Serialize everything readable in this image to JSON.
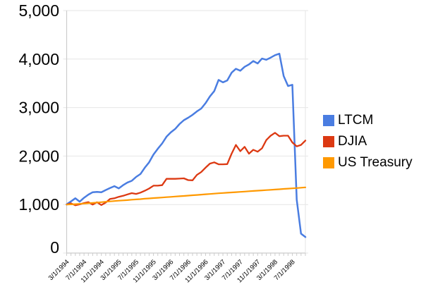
{
  "colors": {
    "background": "#ffffff",
    "grid": "#e6e6e6",
    "axis": "#cccccc",
    "text": "#000000"
  },
  "chart_data": {
    "type": "line",
    "title": "",
    "xlabel": "",
    "ylabel": "",
    "ylim": [
      0,
      5000
    ],
    "y_ticks": [
      0,
      1000,
      2000,
      3000,
      4000,
      5000
    ],
    "grid": "horizontal",
    "legend_position": "right",
    "x_labels_shown": [
      "3/1/1994",
      "7/1/1994",
      "11/1/1994",
      "3/1/1995",
      "7/1/1995",
      "11/1/1995",
      "3/1/1996",
      "7/1/1996",
      "11/1/1996",
      "3/1/1997",
      "7/1/1997",
      "11/1/1997",
      "3/1/1998",
      "7/1/1998"
    ],
    "dates": [
      "3/1/1994",
      "4/1/1994",
      "5/1/1994",
      "6/1/1994",
      "7/1/1994",
      "8/1/1994",
      "9/1/1994",
      "10/1/1994",
      "11/1/1994",
      "12/1/1994",
      "1/1/1995",
      "2/1/1995",
      "3/1/1995",
      "4/1/1995",
      "5/1/1995",
      "6/1/1995",
      "7/1/1995",
      "8/1/1995",
      "9/1/1995",
      "10/1/1995",
      "11/1/1995",
      "12/1/1995",
      "1/1/1996",
      "2/1/1996",
      "3/1/1996",
      "4/1/1996",
      "5/1/1996",
      "6/1/1996",
      "7/1/1996",
      "8/1/1996",
      "9/1/1996",
      "10/1/1996",
      "11/1/1996",
      "12/1/1996",
      "1/1/1997",
      "2/1/1997",
      "3/1/1997",
      "4/1/1997",
      "5/1/1997",
      "6/1/1997",
      "7/1/1997",
      "8/1/1997",
      "9/1/1997",
      "10/1/1997",
      "11/1/1997",
      "12/1/1997",
      "1/1/1998",
      "2/1/1998",
      "3/1/1998",
      "4/1/1998",
      "5/1/1998",
      "6/1/1998",
      "7/1/1998",
      "8/1/1998",
      "9/1/1998",
      "10/1/1998"
    ],
    "series": [
      {
        "name": "LTCM",
        "color": "#4a7de1",
        "values": [
          1005,
          1065,
          1130,
          1060,
          1140,
          1205,
          1255,
          1260,
          1255,
          1300,
          1340,
          1380,
          1335,
          1400,
          1455,
          1490,
          1570,
          1630,
          1760,
          1870,
          2030,
          2150,
          2260,
          2400,
          2490,
          2560,
          2660,
          2740,
          2790,
          2850,
          2920,
          2980,
          3090,
          3230,
          3340,
          3570,
          3520,
          3560,
          3720,
          3800,
          3760,
          3840,
          3890,
          3960,
          3910,
          4010,
          3985,
          4030,
          4080,
          4110,
          3650,
          3445,
          3470,
          1100,
          400,
          330
        ]
      },
      {
        "name": "DJIA",
        "color": "#dc3912",
        "values": [
          1000,
          1025,
          985,
          1005,
          1030,
          1050,
          1000,
          1048,
          990,
          1040,
          1115,
          1130,
          1160,
          1180,
          1210,
          1235,
          1220,
          1245,
          1285,
          1330,
          1390,
          1390,
          1400,
          1530,
          1530,
          1530,
          1535,
          1540,
          1505,
          1500,
          1610,
          1670,
          1760,
          1845,
          1870,
          1830,
          1830,
          1835,
          2050,
          2230,
          2100,
          2190,
          2050,
          2130,
          2090,
          2160,
          2330,
          2420,
          2480,
          2410,
          2420,
          2420,
          2280,
          2200,
          2230,
          2320
        ]
      },
      {
        "name": "US Treasury",
        "color": "#ff9900",
        "values": [
          1000,
          1005,
          1008,
          1015,
          1020,
          1028,
          1035,
          1042,
          1050,
          1058,
          1065,
          1072,
          1080,
          1086,
          1092,
          1100,
          1106,
          1112,
          1120,
          1126,
          1133,
          1140,
          1146,
          1152,
          1158,
          1165,
          1172,
          1178,
          1185,
          1192,
          1198,
          1205,
          1212,
          1218,
          1225,
          1232,
          1238,
          1244,
          1250,
          1256,
          1262,
          1268,
          1274,
          1280,
          1286,
          1292,
          1298,
          1304,
          1310,
          1316,
          1322,
          1328,
          1334,
          1340,
          1347,
          1355
        ]
      }
    ]
  }
}
